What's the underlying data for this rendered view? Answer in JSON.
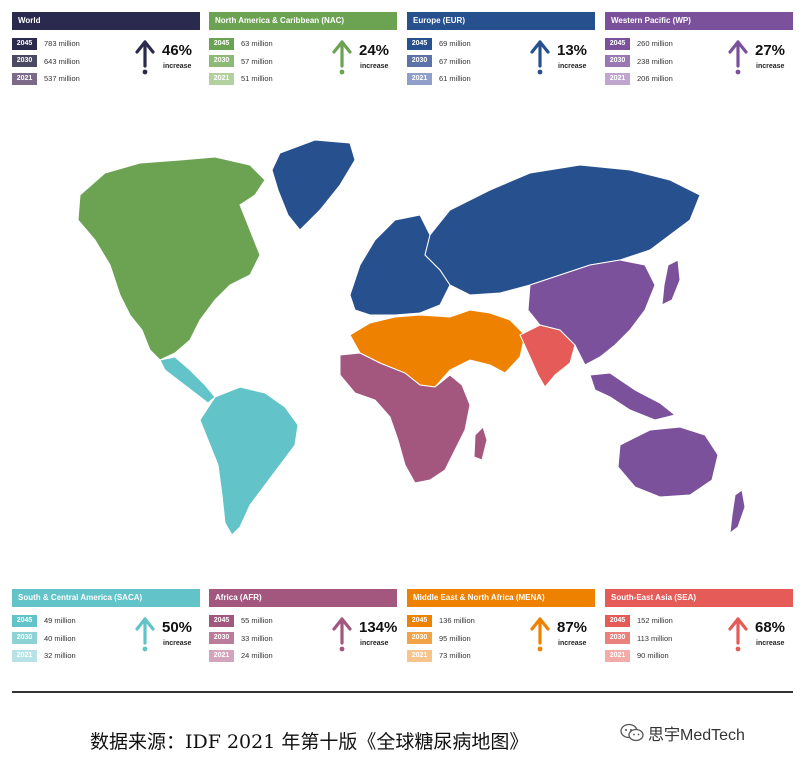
{
  "colors": {
    "world": "#2a2a4e",
    "nac": "#6ba352",
    "eur": "#27508f",
    "wp": "#7b519c",
    "saca": "#62c3c8",
    "afr": "#a3577f",
    "mena": "#ee8100",
    "sea": "#e45b58"
  },
  "regions": [
    {
      "id": "world",
      "title": "World",
      "pct": "46%",
      "increase": "increase",
      "arrow_icon": "up-arrow-icon",
      "rows": [
        {
          "year": "2045",
          "value": "783 million"
        },
        {
          "year": "2030",
          "value": "643 million"
        },
        {
          "year": "2021",
          "value": "537 million"
        }
      ],
      "year_colors": [
        "#2a2a4e",
        "#4a4960",
        "#7d6a88"
      ]
    },
    {
      "id": "nac",
      "title": "North America & Caribbean (NAC)",
      "pct": "24%",
      "increase": "increase",
      "arrow_icon": "up-arrow-icon",
      "rows": [
        {
          "year": "2045",
          "value": "63 million"
        },
        {
          "year": "2030",
          "value": "57 million"
        },
        {
          "year": "2021",
          "value": "51 million"
        }
      ],
      "year_colors": [
        "#6ba352",
        "#8dbb76",
        "#b3d19f"
      ]
    },
    {
      "id": "eur",
      "title": "Europe (EUR)",
      "pct": "13%",
      "increase": "increase",
      "arrow_icon": "up-arrow-icon",
      "rows": [
        {
          "year": "2045",
          "value": "69 million"
        },
        {
          "year": "2030",
          "value": "67 million"
        },
        {
          "year": "2021",
          "value": "61 million"
        }
      ],
      "year_colors": [
        "#27508f",
        "#5b73a8",
        "#8f9fc9"
      ]
    },
    {
      "id": "wp",
      "title": "Western Pacific (WP)",
      "pct": "27%",
      "increase": "increase",
      "arrow_icon": "up-arrow-icon",
      "rows": [
        {
          "year": "2045",
          "value": "260 million"
        },
        {
          "year": "2030",
          "value": "238 million"
        },
        {
          "year": "2021",
          "value": "206 million"
        }
      ],
      "year_colors": [
        "#7b519c",
        "#9a78b3",
        "#bfa6d0"
      ]
    },
    {
      "id": "saca",
      "title": "South & Central America (SACA)",
      "pct": "50%",
      "increase": "increase",
      "arrow_icon": "up-arrow-icon",
      "rows": [
        {
          "year": "2045",
          "value": "49 million"
        },
        {
          "year": "2030",
          "value": "40 million"
        },
        {
          "year": "2021",
          "value": "32 million"
        }
      ],
      "year_colors": [
        "#62c3c8",
        "#8ed2d6",
        "#b8e3e6"
      ]
    },
    {
      "id": "afr",
      "title": "Africa (AFR)",
      "pct": "134%",
      "increase": "increase",
      "arrow_icon": "up-arrow-icon",
      "rows": [
        {
          "year": "2045",
          "value": "55 million"
        },
        {
          "year": "2030",
          "value": "33 million"
        },
        {
          "year": "2021",
          "value": "24 million"
        }
      ],
      "year_colors": [
        "#a3577f",
        "#bb7b9b",
        "#d3a5bc"
      ]
    },
    {
      "id": "mena",
      "title": "Middle East & North Africa (MENA)",
      "pct": "87%",
      "increase": "increase",
      "arrow_icon": "up-arrow-icon",
      "rows": [
        {
          "year": "2045",
          "value": "136 million"
        },
        {
          "year": "2030",
          "value": "95 million"
        },
        {
          "year": "2021",
          "value": "73 million"
        }
      ],
      "year_colors": [
        "#ee8100",
        "#f3a347",
        "#f7c58c"
      ]
    },
    {
      "id": "sea",
      "title": "South-East Asia (SEA)",
      "pct": "68%",
      "increase": "increase",
      "arrow_icon": "up-arrow-icon",
      "rows": [
        {
          "year": "2045",
          "value": "152 million"
        },
        {
          "year": "2030",
          "value": "113 million"
        },
        {
          "year": "2021",
          "value": "90 million"
        }
      ],
      "year_colors": [
        "#e45b58",
        "#eb817d",
        "#f2aba7"
      ]
    }
  ],
  "caption": "数据来源：IDF 2021 年第十版《全球糖尿病地图》",
  "watermark": {
    "text": "思宇MedTech",
    "icon": "wechat-icon"
  }
}
